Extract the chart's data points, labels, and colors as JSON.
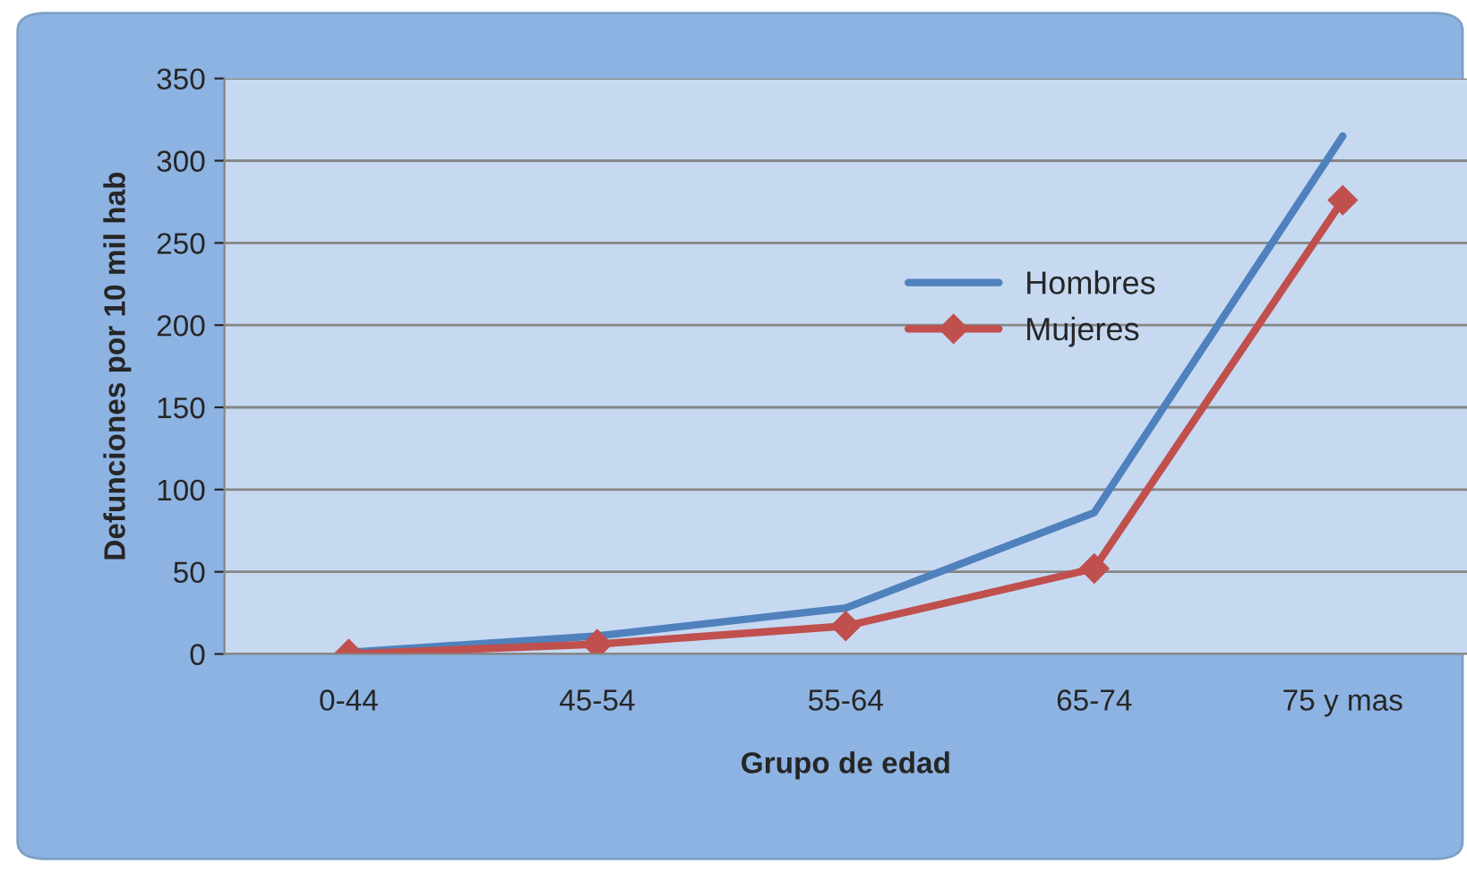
{
  "chart_data": {
    "type": "line",
    "xlabel": "Grupo de edad",
    "ylabel": "Defunciones por 10 mil hab",
    "categories": [
      "0-44",
      "45-54",
      "55-64",
      "65-74",
      "75 y mas"
    ],
    "series": [
      {
        "name": "Hombres",
        "color": "#4f81bd",
        "values": [
          1,
          11,
          28,
          86,
          315
        ],
        "marker": "none"
      },
      {
        "name": "Mujeres",
        "color": "#c0504d",
        "values": [
          0,
          6,
          17,
          52,
          276
        ],
        "marker": "diamond"
      }
    ],
    "ylim": [
      0,
      350
    ],
    "yticks": [
      0,
      50,
      100,
      150,
      200,
      250,
      300,
      350
    ],
    "grid": "y",
    "legend": "top right"
  }
}
